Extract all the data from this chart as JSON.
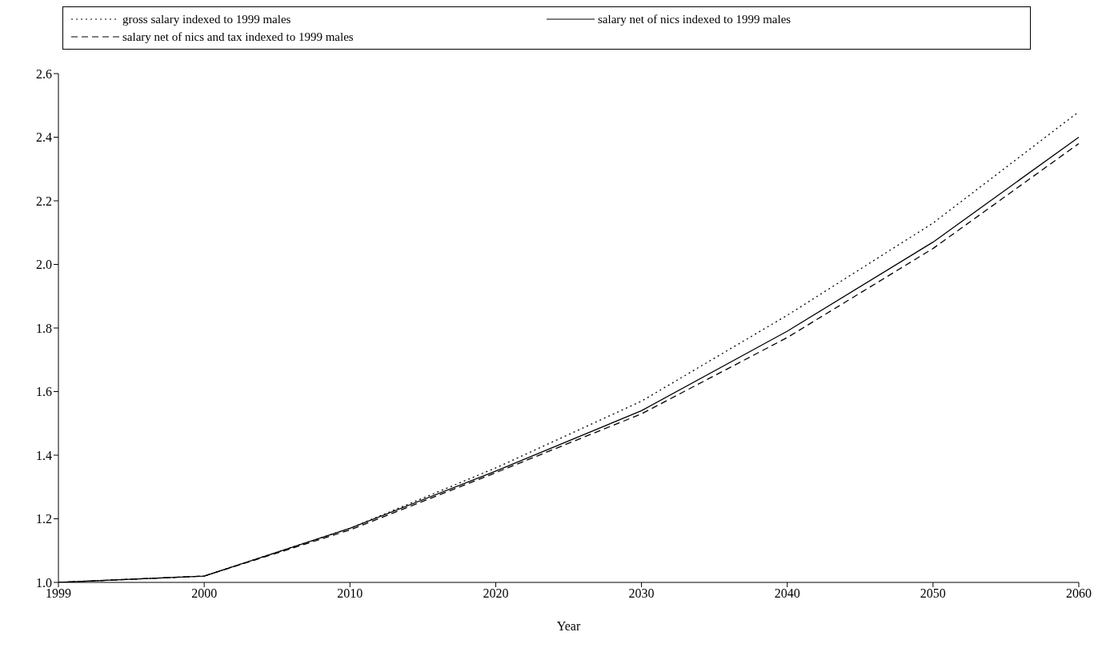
{
  "chart_data": {
    "type": "line",
    "xlabel": "Year",
    "categories": [
      "1999",
      "2000",
      "2010",
      "2020",
      "2030",
      "2040",
      "2050",
      "2060"
    ],
    "series": [
      {
        "name": "gross salary indexed to 1999 males",
        "color": "#000000",
        "line_style": "dotted",
        "values": [
          1.0,
          1.02,
          1.17,
          1.36,
          1.57,
          1.84,
          2.13,
          2.48
        ]
      },
      {
        "name": "salary net of nics indexed to 1999 males",
        "color": "#000000",
        "line_style": "solid",
        "values": [
          1.0,
          1.02,
          1.17,
          1.35,
          1.54,
          1.79,
          2.07,
          2.4
        ]
      },
      {
        "name": "salary net of nics and tax indexed to 1999 males",
        "color": "#000000",
        "line_style": "dashed",
        "values": [
          1.0,
          1.02,
          1.165,
          1.345,
          1.53,
          1.77,
          2.05,
          2.38
        ]
      }
    ],
    "ylim": [
      1.0,
      2.6
    ],
    "yticks": [
      {
        "value": 1.0,
        "label": "1.0"
      },
      {
        "value": 1.2,
        "label": "1.2"
      },
      {
        "value": 1.4,
        "label": "1.4"
      },
      {
        "value": 1.6,
        "label": "1.6"
      },
      {
        "value": 1.8,
        "label": "1.8"
      },
      {
        "value": 2.0,
        "label": "2.0"
      },
      {
        "value": 2.2,
        "label": "2.2"
      },
      {
        "value": 2.4,
        "label": "2.4"
      },
      {
        "value": 2.6,
        "label": "2.6"
      }
    ],
    "legend": "top",
    "grid": false,
    "marker": "none"
  }
}
